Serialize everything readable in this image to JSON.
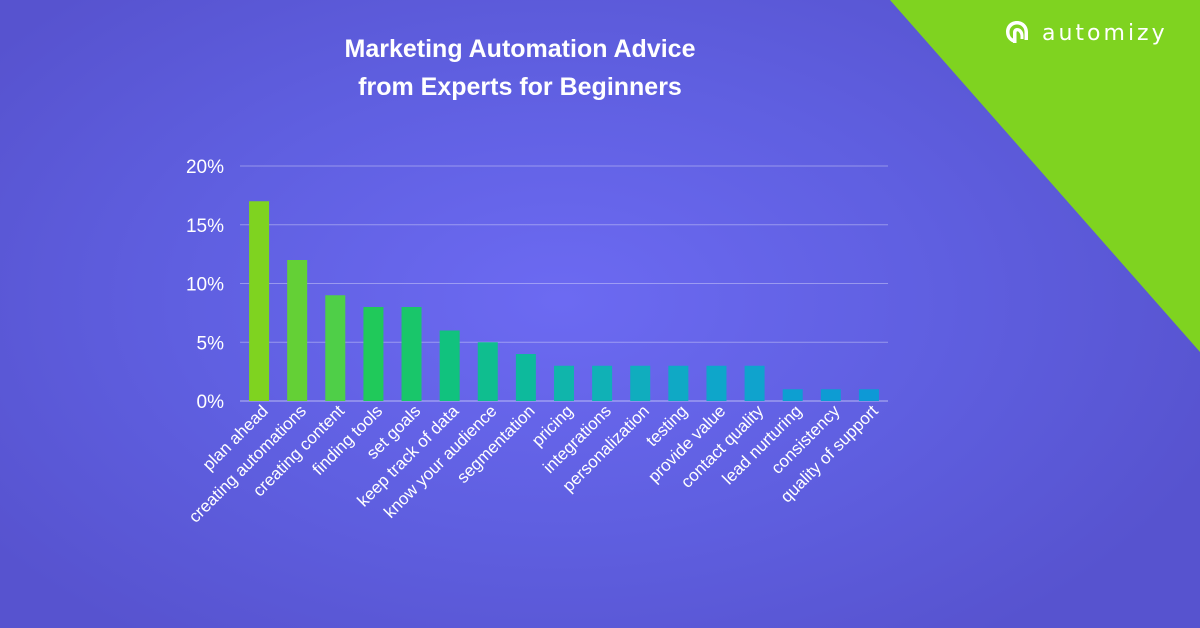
{
  "brand": {
    "name": "automizy",
    "icon": "automizy-logo-icon",
    "accent": "#7fd320"
  },
  "chart_data": {
    "type": "bar",
    "title": "Marketing Automation Advice from Experts for Beginners",
    "title_lines": [
      "Marketing Automation Advice",
      "from Experts for Beginners"
    ],
    "xlabel": "",
    "ylabel": "",
    "ylim": [
      0,
      20
    ],
    "yticks": [
      0,
      5,
      10,
      15,
      20
    ],
    "ytick_labels": [
      "0%",
      "5%",
      "10%",
      "15%",
      "20%"
    ],
    "grid": true,
    "legend": "none",
    "categories": [
      "plan ahead",
      "creating automations",
      "creating content",
      "finding tools",
      "set goals",
      "keep track of data",
      "know your audience",
      "segmentation",
      "pricing",
      "integrations",
      "personalization",
      "testing",
      "provide value",
      "contact quality",
      "lead nurturing",
      "consistency",
      "quality of support"
    ],
    "values": [
      17,
      12,
      9,
      8,
      8,
      6,
      5,
      4,
      3,
      3,
      3,
      3,
      3,
      3,
      1,
      1,
      1
    ],
    "colors": [
      "#7fd320",
      "#64d036",
      "#4fcf48",
      "#20c95a",
      "#19c66a",
      "#11c27e",
      "#0fbe8f",
      "#0dba9c",
      "#10b5ab",
      "#10b1b6",
      "#10adbe",
      "#0fa9c5",
      "#0ea6ca",
      "#0fa3cd",
      "#0d9fd1",
      "#0d9cd3",
      "#0d99d6"
    ]
  }
}
